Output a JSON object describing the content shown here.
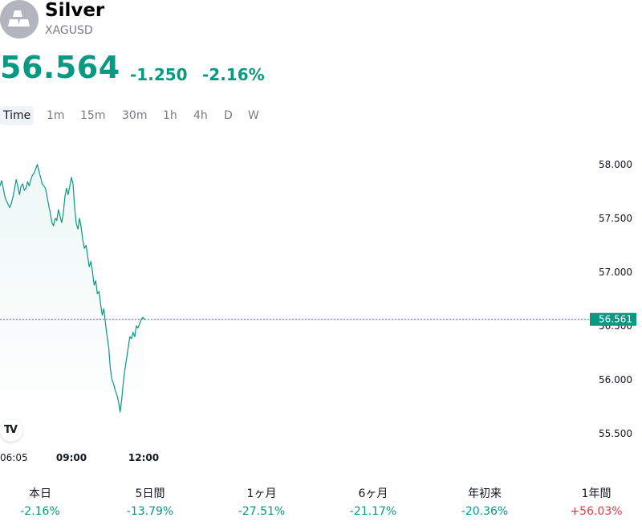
{
  "header": {
    "name": "Silver",
    "ticker": "XAGUSD",
    "price": "56.564",
    "change": "-1.250",
    "change_pct": "-2.16%",
    "logo_icon": "silver-bars-icon"
  },
  "tabs": [
    "Time",
    "1m",
    "15m",
    "30m",
    "1h",
    "4h",
    "D",
    "W"
  ],
  "active_tab": "Time",
  "colors": {
    "up": "#089981",
    "down": "#f23645",
    "line": "#089981",
    "text": "#131722",
    "muted": "#787b86"
  },
  "chart_data": {
    "type": "area",
    "title": "",
    "xlabel": "",
    "ylabel": "",
    "x_ticks": [
      "06:05",
      "09:00",
      "12:00"
    ],
    "y_ticks": [
      "58.000",
      "57.500",
      "57.000",
      "56.500",
      "56.000",
      "55.500"
    ],
    "ylim": [
      55.32,
      58.26
    ],
    "current_price_label": "56.561",
    "current_price": 56.561,
    "grid": false,
    "series": [
      {
        "values": [
          57.8,
          57.85,
          57.78,
          57.7,
          57.66,
          57.63,
          57.6,
          57.64,
          57.7,
          57.78,
          57.86,
          57.8,
          57.72,
          57.8,
          57.82,
          57.76,
          57.78,
          57.84,
          57.8,
          57.86,
          57.9,
          57.92,
          57.96,
          58.0,
          57.94,
          57.88,
          57.82,
          57.8,
          57.78,
          57.7,
          57.62,
          57.55,
          57.46,
          57.43,
          57.5,
          57.48,
          57.58,
          57.52,
          57.46,
          57.55,
          57.7,
          57.78,
          57.72,
          57.8,
          57.88,
          57.82,
          57.6,
          57.45,
          57.4,
          57.5,
          57.42,
          57.3,
          57.22,
          57.25,
          57.15,
          57.05,
          57.1,
          57.0,
          56.88,
          56.92,
          56.8,
          56.82,
          56.7,
          56.6,
          56.66,
          56.52,
          56.4,
          56.3,
          56.1,
          56.0,
          55.96,
          55.9,
          55.86,
          55.8,
          55.7,
          55.82,
          55.98,
          56.1,
          56.2,
          56.3,
          56.4,
          56.38,
          56.44,
          56.4,
          56.5,
          56.48,
          56.52,
          56.56,
          56.58,
          56.56
        ]
      }
    ]
  },
  "performance": [
    {
      "label": "本日",
      "value": "-2.16%",
      "positive": false
    },
    {
      "label": "5日間",
      "value": "-13.79%",
      "positive": false
    },
    {
      "label": "1ヶ月",
      "value": "-27.51%",
      "positive": false
    },
    {
      "label": "6ヶ月",
      "value": "-21.17%",
      "positive": false
    },
    {
      "label": "年初来",
      "value": "-20.36%",
      "positive": false
    },
    {
      "label": "1年間",
      "value": "+56.03%",
      "positive": true
    }
  ]
}
